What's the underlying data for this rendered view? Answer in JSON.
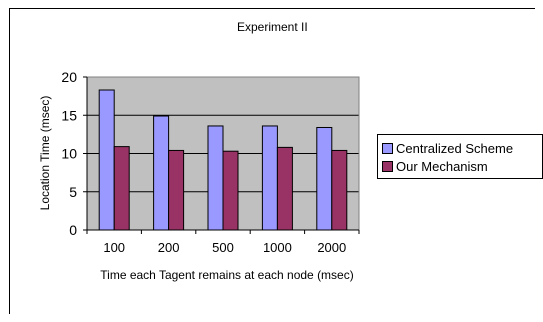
{
  "chart_data": {
    "type": "bar",
    "title": "Experiment II",
    "xlabel": "Time each Tagent remains at each node (msec)",
    "ylabel": "Location Time (msec)",
    "categories": [
      "100",
      "200",
      "500",
      "1000",
      "2000"
    ],
    "ylim": [
      0,
      20
    ],
    "yticks": [
      0,
      5,
      10,
      15,
      20
    ],
    "grid": true,
    "legend_position": "right",
    "series": [
      {
        "name": "Centralized Scheme",
        "color": "#9999ff",
        "values": [
          18.3,
          14.9,
          13.6,
          13.6,
          13.4
        ]
      },
      {
        "name": "Our Mechanism",
        "color": "#993366",
        "values": [
          10.9,
          10.4,
          10.3,
          10.8,
          10.4
        ]
      }
    ],
    "plot_background": "#c0c0c0"
  }
}
